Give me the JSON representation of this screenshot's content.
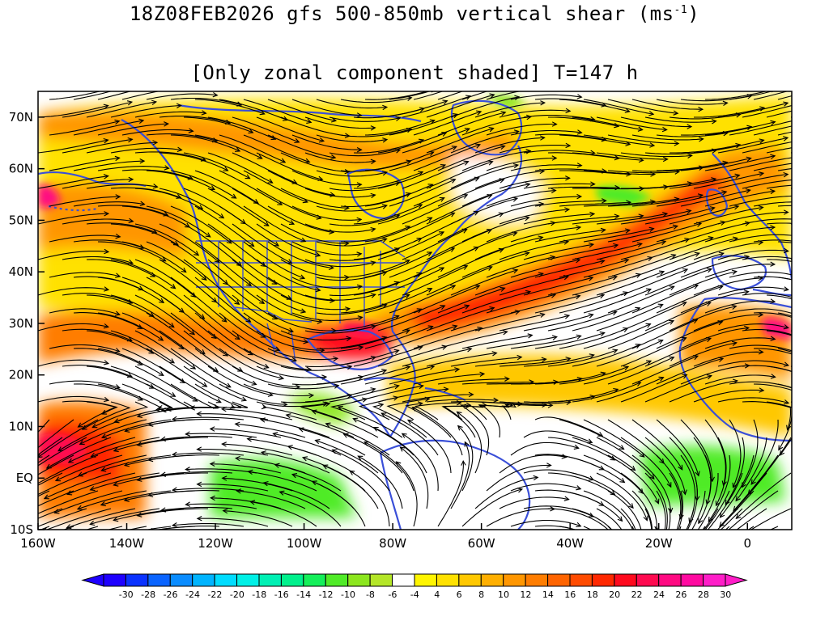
{
  "title": {
    "line1_prefix": "18Z08FEB2026 gfs 500-850mb vertical shear (ms",
    "line1_sup": "-1",
    "line1_suffix": ")",
    "line2": "[Only zonal component shaded] T=147 h"
  },
  "map": {
    "lon_range": [
      -160,
      10
    ],
    "lat_range": [
      -10,
      75
    ],
    "lat_ticks": [
      {
        "value": 70,
        "label": "70N"
      },
      {
        "value": 60,
        "label": "60N"
      },
      {
        "value": 50,
        "label": "50N"
      },
      {
        "value": 40,
        "label": "40N"
      },
      {
        "value": 30,
        "label": "30N"
      },
      {
        "value": 20,
        "label": "20N"
      },
      {
        "value": 10,
        "label": "10N"
      },
      {
        "value": 0,
        "label": "EQ"
      },
      {
        "value": -10,
        "label": "10S"
      }
    ],
    "lon_ticks": [
      {
        "value": -160,
        "label": "160W"
      },
      {
        "value": -140,
        "label": "140W"
      },
      {
        "value": -120,
        "label": "120W"
      },
      {
        "value": -100,
        "label": "100W"
      },
      {
        "value": -80,
        "label": "80W"
      },
      {
        "value": -60,
        "label": "60W"
      },
      {
        "value": -40,
        "label": "40W"
      },
      {
        "value": -20,
        "label": "20W"
      },
      {
        "value": 0,
        "label": "0"
      }
    ],
    "coastline_color": "#3a4fd8",
    "streamline_color": "#000000"
  },
  "colorbar": {
    "labels": [
      "-30",
      "-28",
      "-26",
      "-24",
      "-22",
      "-20",
      "-18",
      "-16",
      "-14",
      "-12",
      "-10",
      "-8",
      "-6",
      "-4",
      "4",
      "6",
      "8",
      "10",
      "12",
      "14",
      "16",
      "18",
      "20",
      "22",
      "24",
      "26",
      "28",
      "30"
    ],
    "colors": [
      "#1e00ff",
      "#0a32ff",
      "#0a64ff",
      "#0a8cff",
      "#00b4ff",
      "#00dcff",
      "#00f0e6",
      "#00f0b4",
      "#00f08c",
      "#14ef5a",
      "#50eb28",
      "#8ce61e",
      "#b4e628",
      "#ffffff",
      "#fff500",
      "#ffe100",
      "#ffc800",
      "#ffaf00",
      "#ff9600",
      "#ff7d00",
      "#ff6400",
      "#ff4b00",
      "#ff2800",
      "#ff0a1e",
      "#ff0a50",
      "#ff0a82",
      "#ff0aa0",
      "#ff1ec8"
    ],
    "under_color": "#1e00ff",
    "over_color": "#ff1ec8"
  }
}
